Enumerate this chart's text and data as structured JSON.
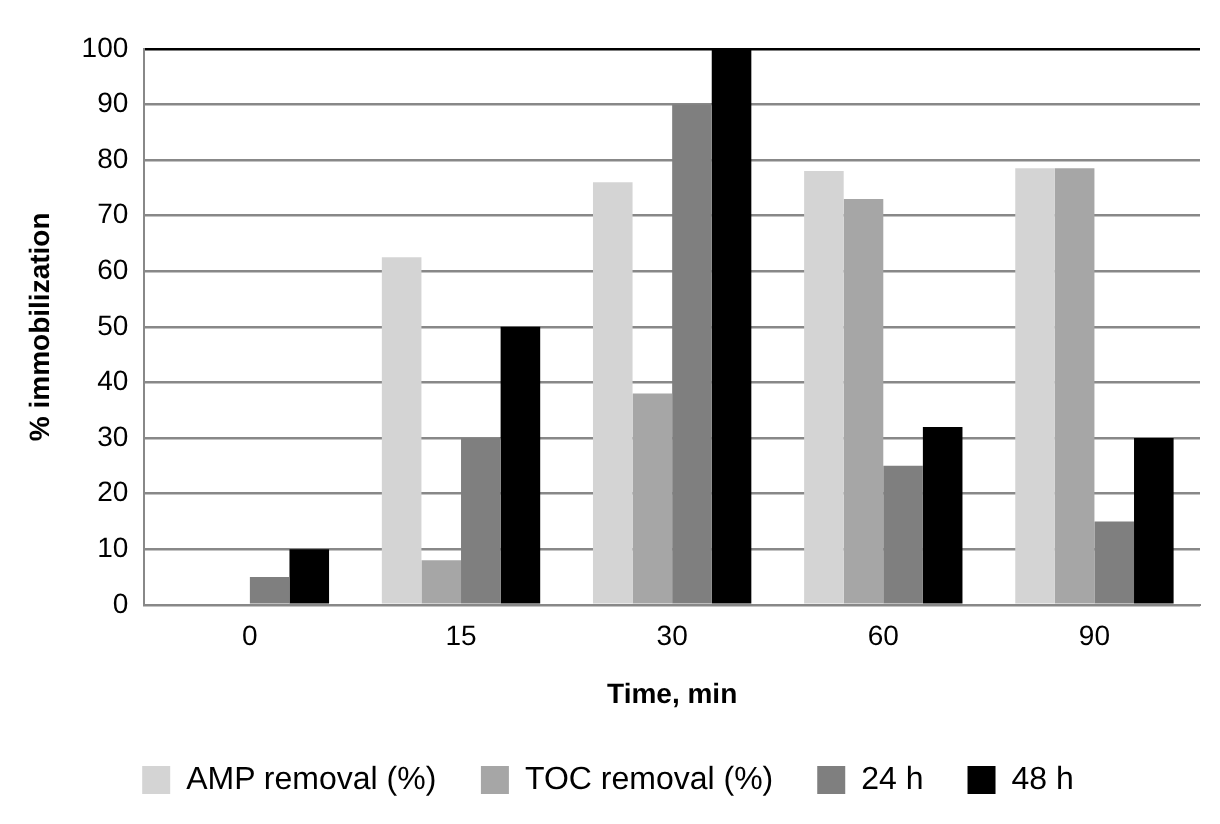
{
  "chart_data": {
    "type": "bar",
    "xlabel": "Time, min",
    "ylabel": "% immobilization",
    "categories": [
      "0",
      "15",
      "30",
      "60",
      "90"
    ],
    "series": [
      {
        "name": "AMP removal (%)",
        "color": "#d4d4d4",
        "values": [
          0,
          62.5,
          76,
          78,
          78.5
        ]
      },
      {
        "name": "TOC removal (%)",
        "color": "#a6a6a6",
        "values": [
          0,
          8,
          38,
          73,
          78.5
        ]
      },
      {
        "name": "24 h",
        "color": "#7f7f7f",
        "values": [
          5,
          30,
          90,
          25,
          15
        ]
      },
      {
        "name": "48 h",
        "color": "#000000",
        "values": [
          10,
          50,
          100,
          32,
          30
        ]
      }
    ],
    "ylim": [
      0,
      100
    ],
    "yticks": [
      0,
      10,
      20,
      30,
      40,
      50,
      60,
      70,
      80,
      90,
      100
    ],
    "grid": "y",
    "legend": "bottom"
  }
}
